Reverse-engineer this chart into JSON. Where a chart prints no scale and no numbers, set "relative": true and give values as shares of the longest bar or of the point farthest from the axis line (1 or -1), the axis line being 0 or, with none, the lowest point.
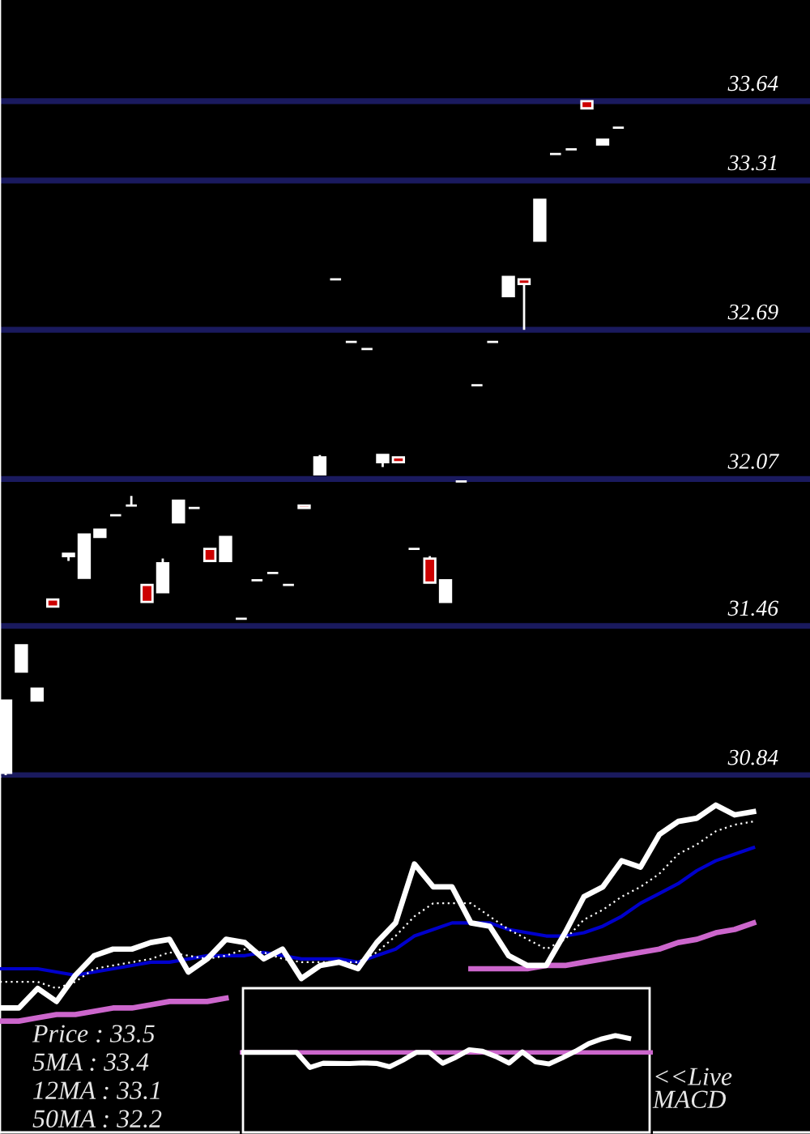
{
  "chart_data": [
    {
      "type": "candlestick",
      "categories": [
        null,
        null,
        null,
        null,
        null,
        null,
        null,
        null,
        null,
        null,
        null,
        null,
        null,
        null,
        null,
        null,
        null,
        null,
        null,
        null,
        null,
        null,
        null,
        null,
        null,
        null,
        null,
        null,
        null,
        null,
        null,
        null,
        null,
        null,
        null,
        null,
        null,
        null,
        null,
        null
      ],
      "ohlc": [
        [
          30.85,
          31.15,
          30.84,
          31.15
        ],
        [
          31.27,
          31.38,
          31.27,
          31.38
        ],
        [
          31.15,
          31.2,
          31.15,
          31.2
        ],
        [
          31.57,
          31.57,
          31.54,
          31.54
        ],
        [
          31.75,
          31.76,
          31.73,
          31.76
        ],
        [
          31.66,
          31.84,
          31.66,
          31.84
        ],
        [
          31.83,
          31.86,
          31.83,
          31.86
        ],
        [
          31.92,
          31.92,
          31.92,
          31.92
        ],
        [
          31.96,
          32.0,
          31.96,
          31.96
        ],
        [
          31.63,
          31.63,
          31.56,
          31.56
        ],
        [
          31.6,
          31.74,
          31.6,
          31.72
        ],
        [
          31.89,
          31.98,
          31.89,
          31.98
        ],
        [
          31.95,
          31.95,
          31.95,
          31.95
        ],
        [
          31.78,
          31.78,
          31.73,
          31.73
        ],
        [
          31.73,
          31.83,
          31.73,
          31.83
        ],
        [
          31.49,
          31.49,
          31.49,
          31.49
        ],
        [
          31.65,
          31.65,
          31.65,
          31.65
        ],
        [
          31.68,
          31.68,
          31.68,
          31.68
        ],
        [
          31.63,
          31.63,
          31.63,
          31.63
        ],
        [
          31.96,
          31.96,
          31.95,
          31.95
        ],
        [
          32.09,
          32.17,
          32.09,
          32.16
        ],
        [
          32.9,
          32.9,
          32.9,
          32.9
        ],
        [
          32.64,
          32.64,
          32.64,
          32.64
        ],
        [
          32.61,
          32.61,
          32.61,
          32.61
        ],
        [
          32.14,
          32.17,
          32.12,
          32.17
        ],
        [
          32.16,
          32.16,
          32.14,
          32.14
        ],
        [
          31.78,
          31.78,
          31.78,
          31.78
        ],
        [
          31.74,
          31.75,
          31.64,
          31.64
        ],
        [
          31.56,
          31.65,
          31.56,
          31.65
        ],
        [
          32.06,
          32.06,
          32.06,
          32.06
        ],
        [
          32.46,
          32.46,
          32.46,
          32.46
        ],
        [
          32.64,
          32.64,
          32.64,
          32.64
        ],
        [
          32.83,
          32.91,
          32.83,
          32.91
        ],
        [
          32.9,
          32.9,
          32.69,
          32.88
        ],
        [
          33.06,
          33.23,
          33.06,
          33.23
        ],
        [
          33.42,
          33.42,
          33.42,
          33.42
        ],
        [
          33.44,
          33.44,
          33.44,
          33.44
        ],
        [
          33.64,
          33.64,
          33.61,
          33.61
        ],
        [
          33.46,
          33.48,
          33.46,
          33.48
        ],
        [
          33.53,
          33.53,
          33.53,
          33.53
        ]
      ],
      "colors": [
        "#ffffff",
        "#ffffff",
        "#ffffff",
        "#cc0000",
        "#ffffff",
        "#ffffff",
        "#ffffff",
        "#ffffff",
        "#ffffff",
        "#cc0000",
        "#ffffff",
        "#ffffff",
        "#ffffff",
        "#cc0000",
        "#ffffff",
        "#ffffff",
        "#ffffff",
        "#ffffff",
        "#ffffff",
        "#cc0000",
        "#ffffff",
        "#ffffff",
        "#ffffff",
        "#ffffff",
        "#ffffff",
        "#cc0000",
        "#ffffff",
        "#cc0000",
        "#ffffff",
        "#ffffff",
        "#ffffff",
        "#ffffff",
        "#ffffff",
        "#cc0000",
        "#ffffff",
        "#ffffff",
        "#ffffff",
        "#cc0000",
        "#ffffff",
        "#ffffff"
      ],
      "ylim": [
        30.83,
        34.06
      ],
      "yticks": [
        30.84,
        31.46,
        32.07,
        32.69,
        33.31,
        33.64
      ],
      "grid": "y"
    },
    {
      "type": "line",
      "relative": true,
      "categories": [
        null,
        null,
        null,
        null,
        null,
        null,
        null,
        null,
        null,
        null,
        null,
        null,
        null,
        null,
        null,
        null,
        null,
        null,
        null,
        null,
        null,
        null,
        null,
        null,
        null,
        null,
        null,
        null,
        null,
        null,
        null,
        null,
        null,
        null,
        null,
        null,
        null,
        null,
        null,
        null,
        null
      ],
      "series": [
        {
          "color": "#ffffff",
          "values": [
            0.38,
            0.38,
            0.44,
            0.4,
            0.48,
            0.54,
            0.56,
            0.56,
            0.58,
            0.59,
            0.49,
            0.53,
            0.59,
            0.58,
            0.53,
            0.56,
            0.47,
            0.51,
            0.52,
            0.5,
            0.58,
            0.64,
            0.82,
            0.75,
            0.75,
            0.64,
            0.63,
            0.54,
            0.51,
            0.51,
            0.61,
            0.72,
            0.75,
            0.83,
            0.81,
            0.91,
            0.95,
            0.96,
            1.0,
            0.97,
            0.98
          ]
        },
        {
          "color": "#ffffff",
          "line_style": "dotted",
          "values": [
            0.46,
            0.46,
            0.46,
            0.44,
            0.46,
            0.5,
            0.51,
            0.52,
            0.53,
            0.55,
            0.54,
            0.53,
            0.54,
            0.56,
            0.55,
            0.53,
            0.52,
            0.52,
            0.52,
            0.52,
            0.55,
            0.6,
            0.66,
            0.7,
            0.7,
            0.7,
            0.66,
            0.62,
            0.59,
            0.56,
            0.59,
            0.65,
            0.68,
            0.72,
            0.75,
            0.79,
            0.85,
            0.88,
            0.92,
            0.94,
            0.95
          ]
        },
        {
          "color": "#0000cc",
          "values": [
            0.5,
            0.5,
            0.5,
            0.49,
            0.48,
            0.49,
            0.5,
            0.51,
            0.52,
            0.52,
            0.53,
            0.54,
            0.54,
            0.54,
            0.55,
            0.54,
            0.53,
            0.53,
            0.53,
            0.52,
            0.54,
            0.56,
            0.6,
            0.62,
            0.64,
            0.64,
            0.64,
            0.62,
            0.61,
            0.6,
            0.6,
            0.61,
            0.63,
            0.66,
            0.7,
            0.73,
            0.76,
            0.8,
            0.83,
            0.85,
            0.87
          ]
        },
        {
          "color": "#cc66cc",
          "values": [
            0.34,
            0.34,
            0.35,
            0.36,
            0.36,
            0.37,
            0.38,
            0.38,
            0.39,
            0.4,
            0.4,
            0.4,
            0.41,
            null,
            null,
            null,
            null,
            null,
            null,
            null,
            null,
            null,
            null,
            null,
            null,
            0.5,
            0.5,
            0.5,
            0.5,
            0.51,
            0.51,
            0.52,
            0.53,
            0.54,
            0.55,
            0.56,
            0.58,
            0.59,
            0.61,
            0.62,
            0.64
          ]
        }
      ],
      "annotations": [
        "Price : 33.5",
        "5MA : 33.4",
        "12MA : 33.1",
        "50MA : 32.2"
      ]
    },
    {
      "type": "line",
      "relative": true,
      "categories": [
        null,
        null,
        null,
        null,
        null,
        null,
        null,
        null,
        null,
        null,
        null,
        null,
        null,
        null,
        null,
        null,
        null,
        null,
        null,
        null,
        null,
        null,
        null,
        null,
        null,
        null,
        null,
        null,
        null,
        null
      ],
      "color": "#ffffff",
      "values": [
        0,
        0,
        0,
        0,
        0,
        -0.89,
        -0.64,
        -0.65,
        -0.66,
        -0.62,
        -0.65,
        -0.85,
        -0.46,
        0,
        0,
        -0.64,
        -0.28,
        0.16,
        0.07,
        -0.24,
        -0.63,
        0.03,
        -0.56,
        -0.68,
        -0.32,
        0.07,
        0.53,
        0.81,
        1.0,
        0.84
      ],
      "ref_lines": [
        {
          "axis": "y",
          "value": 0,
          "color": "#cc66cc"
        }
      ],
      "annotations": [
        "<<Live",
        "MACD"
      ]
    }
  ]
}
